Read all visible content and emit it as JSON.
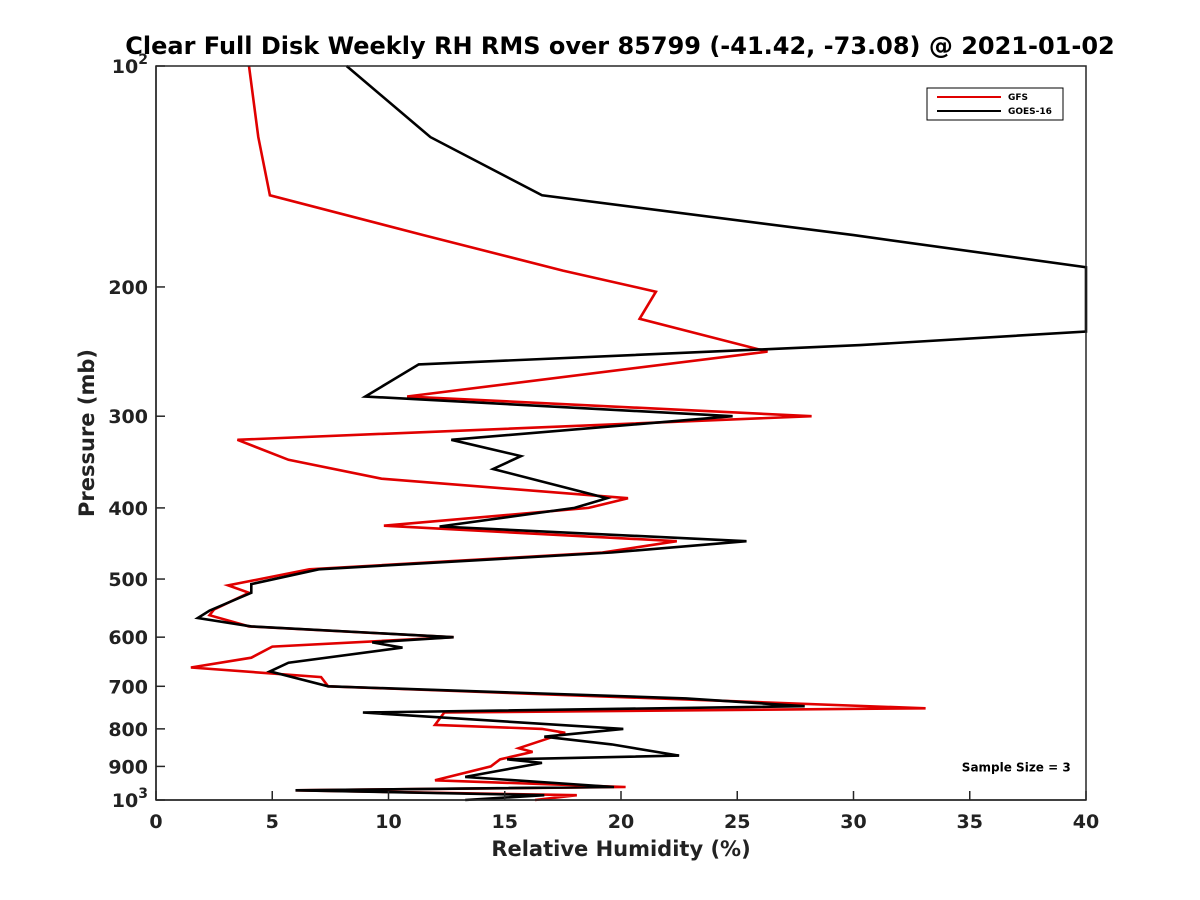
{
  "chart_data": {
    "type": "line",
    "title": "Clear Full Disk Weekly RH RMS over 85799 (-41.42, -73.08) @ 2021-01-02",
    "xlabel": "Relative Humidity (%)",
    "ylabel": "Pressure (mb)",
    "xlim": [
      0,
      40
    ],
    "ylim": [
      100,
      1000
    ],
    "y_scale": "log",
    "y_reversed": true,
    "grid": false,
    "legend_position": "top-right",
    "x_ticks": [
      "0",
      "5",
      "10",
      "15",
      "20",
      "25",
      "30",
      "35",
      "40"
    ],
    "y_ticks": [
      {
        "value": 100,
        "base": "10",
        "exp": "2"
      },
      {
        "value": 200,
        "label": "200"
      },
      {
        "value": 300,
        "label": "300"
      },
      {
        "value": 400,
        "label": "400"
      },
      {
        "value": 500,
        "label": "500"
      },
      {
        "value": 600,
        "label": "600"
      },
      {
        "value": 700,
        "label": "700"
      },
      {
        "value": 800,
        "label": "800"
      },
      {
        "value": 900,
        "label": "900"
      },
      {
        "value": 1000,
        "base": "10",
        "exp": "3"
      }
    ],
    "series": [
      {
        "name": "GFS",
        "color": "#e00000",
        "points": [
          [
            4.0,
            100
          ],
          [
            4.4,
            125
          ],
          [
            4.9,
            150
          ],
          [
            11.5,
            170
          ],
          [
            17.5,
            190
          ],
          [
            21.5,
            203
          ],
          [
            20.8,
            221
          ],
          [
            26.3,
            245
          ],
          [
            10.8,
            282
          ],
          [
            28.2,
            300
          ],
          [
            3.5,
            323
          ],
          [
            5.7,
            344
          ],
          [
            9.7,
            365
          ],
          [
            20.3,
            388
          ],
          [
            18.6,
            400
          ],
          [
            9.8,
            423
          ],
          [
            22.4,
            444
          ],
          [
            19.2,
            460
          ],
          [
            6.6,
            485
          ],
          [
            3.1,
            510
          ],
          [
            4.0,
            522
          ],
          [
            2.5,
            550
          ],
          [
            2.3,
            560
          ],
          [
            4.0,
            580
          ],
          [
            12.8,
            600
          ],
          [
            5.0,
            618
          ],
          [
            4.1,
            640
          ],
          [
            1.5,
            660
          ],
          [
            7.1,
            680
          ],
          [
            7.4,
            700
          ],
          [
            33.1,
            750
          ],
          [
            12.4,
            760
          ],
          [
            12.0,
            790
          ],
          [
            16.6,
            800
          ],
          [
            17.6,
            810
          ],
          [
            15.6,
            850
          ],
          [
            16.2,
            860
          ],
          [
            14.8,
            880
          ],
          [
            14.4,
            900
          ],
          [
            12.0,
            940
          ],
          [
            20.2,
            960
          ],
          [
            6.0,
            970
          ],
          [
            18.1,
            985
          ],
          [
            16.3,
            1000
          ]
        ]
      },
      {
        "name": "GOES-16",
        "color": "#000000",
        "points": [
          [
            8.2,
            100
          ],
          [
            11.8,
            125
          ],
          [
            16.6,
            150
          ],
          [
            30.0,
            170
          ],
          [
            40.0,
            188
          ],
          [
            40.0,
            230
          ],
          [
            30.3,
            240
          ],
          [
            11.3,
            255
          ],
          [
            9.0,
            282
          ],
          [
            24.8,
            300
          ],
          [
            12.7,
            323
          ],
          [
            15.7,
            340
          ],
          [
            14.5,
            354
          ],
          [
            19.4,
            388
          ],
          [
            18.0,
            400
          ],
          [
            12.2,
            424
          ],
          [
            25.4,
            444
          ],
          [
            19.6,
            460
          ],
          [
            7.0,
            485
          ],
          [
            4.1,
            508
          ],
          [
            4.1,
            522
          ],
          [
            2.3,
            552
          ],
          [
            1.8,
            565
          ],
          [
            4.1,
            580
          ],
          [
            12.8,
            600
          ],
          [
            9.3,
            610
          ],
          [
            10.6,
            620
          ],
          [
            5.7,
            650
          ],
          [
            4.9,
            668
          ],
          [
            7.4,
            700
          ],
          [
            22.8,
            727
          ],
          [
            27.9,
            745
          ],
          [
            8.9,
            760
          ],
          [
            20.1,
            800
          ],
          [
            16.7,
            820
          ],
          [
            19.6,
            840
          ],
          [
            22.5,
            870
          ],
          [
            15.1,
            880
          ],
          [
            16.6,
            890
          ],
          [
            13.3,
            930
          ],
          [
            19.7,
            960
          ],
          [
            6.0,
            970
          ],
          [
            16.7,
            985
          ],
          [
            13.3,
            1000
          ]
        ]
      }
    ],
    "annotations": [
      {
        "text": "Sample Size = 3",
        "x": 37,
        "y": 903
      }
    ]
  }
}
